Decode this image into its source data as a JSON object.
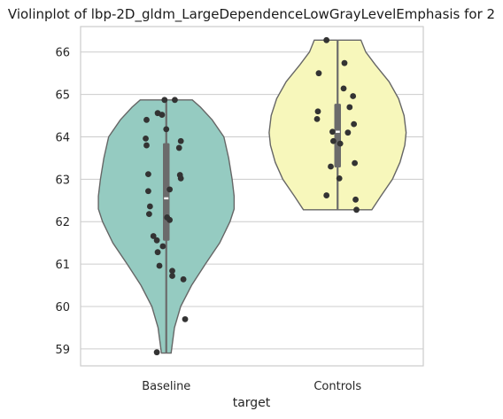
{
  "chart_data": {
    "type": "violin",
    "title": "Violinplot of lbp-2D_gldm_LargeDependenceLowGrayLevelEmphasis for 2",
    "xlabel": "target",
    "ylabel": "",
    "categories": [
      "Baseline",
      "Controls"
    ],
    "ylim": [
      58.6,
      66.6
    ],
    "yticks": [
      59,
      60,
      61,
      62,
      63,
      64,
      65,
      66
    ],
    "grid": true,
    "colors": {
      "Baseline": "#95cbc1",
      "Controls": "#f7f7bb"
    },
    "series": [
      {
        "category": "Baseline",
        "min": 58.9,
        "max": 64.87,
        "q1": 61.55,
        "median": 62.55,
        "q3": 63.85,
        "density": [
          [
            58.9,
            0.07
          ],
          [
            59.5,
            0.12
          ],
          [
            60.0,
            0.21
          ],
          [
            60.5,
            0.37
          ],
          [
            61.0,
            0.57
          ],
          [
            61.5,
            0.78
          ],
          [
            62.0,
            0.93
          ],
          [
            62.3,
            0.99
          ],
          [
            62.6,
            0.99
          ],
          [
            63.0,
            0.96
          ],
          [
            63.5,
            0.91
          ],
          [
            64.0,
            0.84
          ],
          [
            64.4,
            0.67
          ],
          [
            64.7,
            0.5
          ],
          [
            64.87,
            0.38
          ]
        ],
        "points": [
          {
            "y": 64.87,
            "jitter": -0.02
          },
          {
            "y": 64.87,
            "jitter": 0.1
          },
          {
            "y": 64.56,
            "jitter": -0.1
          },
          {
            "y": 64.52,
            "jitter": -0.05
          },
          {
            "y": 64.4,
            "jitter": -0.23
          },
          {
            "y": 64.18,
            "jitter": 0.0
          },
          {
            "y": 63.96,
            "jitter": -0.24
          },
          {
            "y": 63.9,
            "jitter": 0.17
          },
          {
            "y": 63.8,
            "jitter": -0.23
          },
          {
            "y": 63.74,
            "jitter": 0.15
          },
          {
            "y": 63.12,
            "jitter": -0.21
          },
          {
            "y": 63.1,
            "jitter": 0.16
          },
          {
            "y": 63.02,
            "jitter": 0.17
          },
          {
            "y": 62.76,
            "jitter": 0.04
          },
          {
            "y": 62.72,
            "jitter": -0.21
          },
          {
            "y": 62.36,
            "jitter": -0.19
          },
          {
            "y": 62.18,
            "jitter": -0.2
          },
          {
            "y": 62.1,
            "jitter": 0.01
          },
          {
            "y": 62.04,
            "jitter": 0.04
          },
          {
            "y": 61.66,
            "jitter": -0.15
          },
          {
            "y": 61.56,
            "jitter": -0.11
          },
          {
            "y": 61.42,
            "jitter": -0.04
          },
          {
            "y": 61.28,
            "jitter": -0.1
          },
          {
            "y": 60.96,
            "jitter": -0.08
          },
          {
            "y": 60.84,
            "jitter": 0.07
          },
          {
            "y": 60.72,
            "jitter": 0.07
          },
          {
            "y": 60.64,
            "jitter": 0.2
          },
          {
            "y": 59.7,
            "jitter": 0.22
          },
          {
            "y": 58.92,
            "jitter": -0.11
          }
        ]
      },
      {
        "category": "Controls",
        "min": 62.28,
        "max": 66.28,
        "q1": 63.28,
        "median": 64.12,
        "q3": 64.78,
        "density": [
          [
            62.28,
            0.5
          ],
          [
            62.6,
            0.63
          ],
          [
            63.0,
            0.8
          ],
          [
            63.4,
            0.91
          ],
          [
            63.8,
            0.98
          ],
          [
            64.1,
            1.0
          ],
          [
            64.5,
            0.97
          ],
          [
            64.9,
            0.89
          ],
          [
            65.3,
            0.75
          ],
          [
            65.7,
            0.55
          ],
          [
            66.0,
            0.41
          ],
          [
            66.28,
            0.34
          ]
        ],
        "points": [
          {
            "y": 66.28,
            "jitter": -0.13
          },
          {
            "y": 65.74,
            "jitter": 0.08
          },
          {
            "y": 65.5,
            "jitter": -0.22
          },
          {
            "y": 65.14,
            "jitter": 0.07
          },
          {
            "y": 64.96,
            "jitter": 0.18
          },
          {
            "y": 64.7,
            "jitter": 0.14
          },
          {
            "y": 64.6,
            "jitter": -0.23
          },
          {
            "y": 64.42,
            "jitter": -0.24
          },
          {
            "y": 64.3,
            "jitter": 0.19
          },
          {
            "y": 64.12,
            "jitter": -0.06
          },
          {
            "y": 64.1,
            "jitter": 0.12
          },
          {
            "y": 63.9,
            "jitter": -0.05
          },
          {
            "y": 63.84,
            "jitter": 0.03
          },
          {
            "y": 63.38,
            "jitter": 0.2
          },
          {
            "y": 63.3,
            "jitter": -0.08
          },
          {
            "y": 63.02,
            "jitter": 0.02
          },
          {
            "y": 62.62,
            "jitter": -0.13
          },
          {
            "y": 62.52,
            "jitter": 0.21
          },
          {
            "y": 62.28,
            "jitter": 0.22
          }
        ]
      }
    ]
  }
}
